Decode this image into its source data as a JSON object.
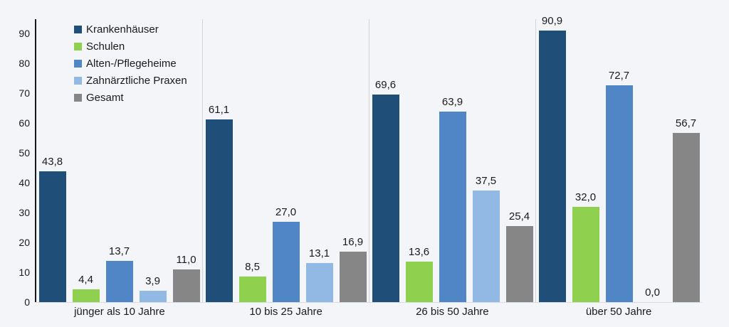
{
  "chart_data": {
    "type": "bar",
    "title": "",
    "xlabel": "",
    "ylabel": "",
    "categories": [
      "jünger als 10 Jahre",
      "10 bis 25 Jahre",
      "26 bis 50 Jahre",
      "über 50 Jahre"
    ],
    "series": [
      {
        "name": "Krankenhäuser",
        "color": "#1f4e79",
        "values": [
          43.8,
          61.1,
          69.6,
          90.9
        ]
      },
      {
        "name": "Schulen",
        "color": "#8fd04f",
        "values": [
          4.4,
          8.5,
          13.6,
          32.0
        ]
      },
      {
        "name": "Alten-/Pflegeheime",
        "color": "#5086c6",
        "values": [
          13.7,
          27.0,
          63.9,
          72.7
        ]
      },
      {
        "name": "Zahnärztliche Praxen",
        "color": "#92b9e4",
        "values": [
          3.9,
          13.1,
          37.5,
          0.0
        ]
      },
      {
        "name": "Gesamt",
        "color": "#868686",
        "values": [
          11.0,
          16.9,
          25.4,
          56.7
        ]
      }
    ],
    "ylim": [
      0,
      100
    ],
    "yticks": [
      0,
      10,
      20,
      30,
      40,
      50,
      60,
      70,
      80,
      90
    ],
    "value_label_decimal_separator": ",",
    "value_labels_shown": true,
    "legend_position": "top-left",
    "grid": false,
    "group_separators": true
  },
  "colors": {
    "background": "#f3f5f8",
    "axis_line": "#16181c",
    "separator": "#d2d4d8",
    "text": "#1a1a1a"
  }
}
